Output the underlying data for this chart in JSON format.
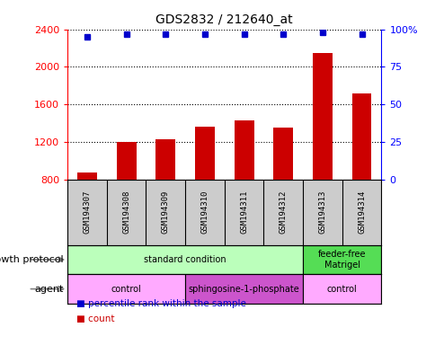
{
  "title": "GDS2832 / 212640_at",
  "samples": [
    "GSM194307",
    "GSM194308",
    "GSM194309",
    "GSM194310",
    "GSM194311",
    "GSM194312",
    "GSM194313",
    "GSM194314"
  ],
  "counts": [
    870,
    1200,
    1230,
    1360,
    1430,
    1350,
    2150,
    1720
  ],
  "percentiles": [
    95,
    97,
    97,
    97,
    97,
    97,
    98,
    97
  ],
  "ylim_left": [
    800,
    2400
  ],
  "ylim_right": [
    0,
    100
  ],
  "yticks_left": [
    800,
    1200,
    1600,
    2000,
    2400
  ],
  "yticks_right": [
    0,
    25,
    50,
    75,
    100
  ],
  "bar_color": "#cc0000",
  "dot_color": "#0000cc",
  "bar_width": 0.5,
  "growth_protocol": {
    "groups": [
      {
        "label": "standard condition",
        "start": 0,
        "end": 6,
        "color": "#bbffbb"
      },
      {
        "label": "feeder-free\nMatrigel",
        "start": 6,
        "end": 8,
        "color": "#55dd55"
      }
    ]
  },
  "agent": {
    "groups": [
      {
        "label": "control",
        "start": 0,
        "end": 3,
        "color": "#ffaaff"
      },
      {
        "label": "sphingosine-1-phosphate",
        "start": 3,
        "end": 6,
        "color": "#cc55cc"
      },
      {
        "label": "control",
        "start": 6,
        "end": 8,
        "color": "#ffaaff"
      }
    ]
  },
  "row_labels": [
    "growth protocol",
    "agent"
  ],
  "legend_items": [
    {
      "label": "count",
      "color": "#cc0000"
    },
    {
      "label": "percentile rank within the sample",
      "color": "#0000cc"
    }
  ],
  "grid_color": "black",
  "bg_color": "#ffffff",
  "sample_box_color": "#cccccc"
}
